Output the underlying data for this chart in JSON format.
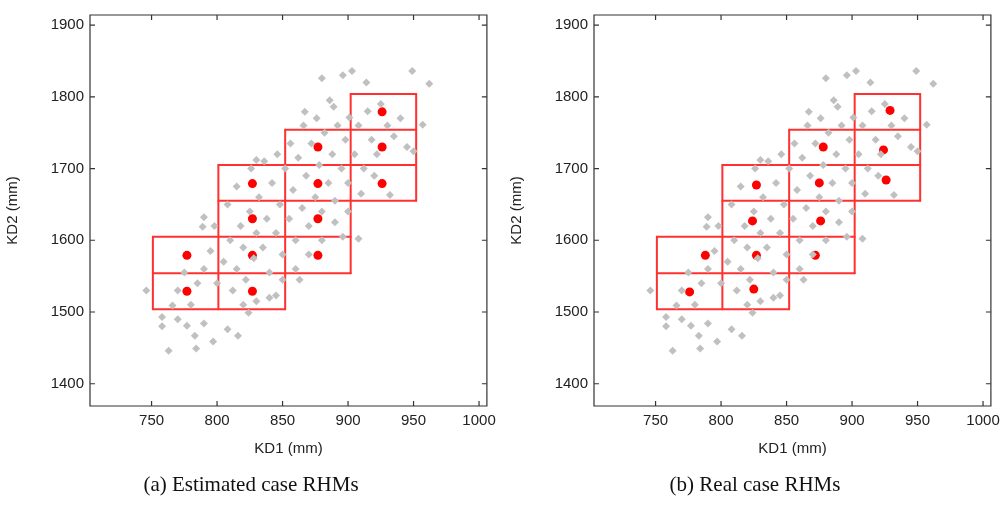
{
  "chart_data": [
    {
      "type": "scatter",
      "title": "(a) Estimated case RHMs",
      "xlabel": "KD1 (mm)",
      "ylabel": "KD2 (mm)",
      "xlim": [
        703,
        1006
      ],
      "ylim": [
        1369,
        1914
      ],
      "xticks": [
        750,
        800,
        850,
        900,
        950,
        1000
      ],
      "yticks": [
        1400,
        1500,
        1600,
        1700,
        1800,
        1900
      ],
      "grid": false,
      "legend": false,
      "series": [
        {
          "color": "#c0c0c0",
          "marker": "diamond",
          "x": [
            746,
            758,
            758,
            763,
            766,
            770,
            777,
            783,
            784,
            790,
            797,
            808,
            816,
            824,
            845,
            863,
            880,
            896,
            903,
            914,
            949,
            962,
            957,
            950,
            932,
            908,
            896,
            867,
            889,
            901,
            830,
            789,
            790,
            800,
            805,
            810,
            812,
            815,
            818,
            820,
            822,
            825,
            828,
            830,
            832,
            835,
            838,
            840,
            842,
            845,
            848,
            850,
            852,
            855,
            858,
            860,
            862,
            865,
            868,
            870,
            872,
            875,
            878,
            880,
            882,
            885,
            888,
            890,
            892,
            895,
            898,
            900,
            905,
            908,
            912,
            915,
            918,
            922,
            925,
            930,
            935,
            940,
            945,
            795,
            790,
            785,
            780,
            775,
            770,
            798,
            808,
            815,
            826,
            836,
            846,
            856,
            866,
            876,
            886,
            860,
            870,
            880,
            890,
            900,
            910,
            920,
            850,
            840,
            830,
            820
          ],
          "values": [
            1530,
            1493,
            1480,
            1446,
            1509,
            1490,
            1481,
            1467,
            1449,
            1484,
            1459,
            1476,
            1467,
            1499,
            1523,
            1545,
            1826,
            1830,
            1836,
            1820,
            1836,
            1818,
            1761,
            1724,
            1663,
            1602,
            1605,
            1779,
            1786,
            1771,
            1712,
            1619,
            1632,
            1540,
            1570,
            1600,
            1530,
            1560,
            1620,
            1590,
            1545,
            1640,
            1575,
            1610,
            1660,
            1590,
            1630,
            1555,
            1680,
            1610,
            1650,
            1580,
            1700,
            1630,
            1670,
            1600,
            1715,
            1645,
            1690,
            1620,
            1735,
            1660,
            1705,
            1640,
            1750,
            1680,
            1720,
            1655,
            1760,
            1700,
            1740,
            1680,
            1720,
            1760,
            1700,
            1780,
            1740,
            1720,
            1790,
            1760,
            1745,
            1770,
            1730,
            1585,
            1560,
            1540,
            1510,
            1555,
            1530,
            1620,
            1650,
            1675,
            1700,
            1710,
            1720,
            1735,
            1760,
            1770,
            1795,
            1560,
            1580,
            1600,
            1625,
            1640,
            1665,
            1690,
            1545,
            1520,
            1515,
            1510
          ]
        },
        {
          "color": "#ff0000",
          "marker": "circle",
          "x": [
            777,
            777,
            827,
            827,
            827,
            827,
            877,
            877,
            877,
            877,
            926,
            926,
            926
          ],
          "values": [
            1529,
            1579,
            1529,
            1579,
            1630,
            1679,
            1579,
            1630,
            1679,
            1730,
            1679,
            1730,
            1779
          ]
        },
        {
          "type": "line",
          "color": "#ff3030",
          "marker": "none",
          "x": [
            751,
            852
          ],
          "values": [
            1504,
            1504
          ]
        },
        {
          "type": "line",
          "color": "#ff3030",
          "marker": "none",
          "x": [
            751,
            902
          ],
          "values": [
            1554,
            1554
          ]
        },
        {
          "type": "line",
          "color": "#ff3030",
          "marker": "none",
          "x": [
            751,
            902
          ],
          "values": [
            1605,
            1605
          ]
        },
        {
          "type": "line",
          "color": "#ff3030",
          "marker": "none",
          "x": [
            801,
            952
          ],
          "values": [
            1655,
            1655
          ]
        },
        {
          "type": "line",
          "color": "#ff3030",
          "marker": "none",
          "x": [
            801,
            952
          ],
          "values": [
            1705,
            1705
          ]
        },
        {
          "type": "line",
          "color": "#ff3030",
          "marker": "none",
          "x": [
            852,
            952
          ],
          "values": [
            1754,
            1754
          ]
        },
        {
          "type": "line",
          "color": "#ff3030",
          "marker": "none",
          "x": [
            902,
            952
          ],
          "values": [
            1804,
            1804
          ]
        },
        {
          "type": "line",
          "color": "#ff3030",
          "marker": "none",
          "x": [
            751,
            751
          ],
          "values": [
            1504,
            1605
          ]
        },
        {
          "type": "line",
          "color": "#ff3030",
          "marker": "none",
          "x": [
            801,
            801
          ],
          "values": [
            1504,
            1705
          ]
        },
        {
          "type": "line",
          "color": "#ff3030",
          "marker": "none",
          "x": [
            852,
            852
          ],
          "values": [
            1504,
            1754
          ]
        },
        {
          "type": "line",
          "color": "#ff3030",
          "marker": "none",
          "x": [
            902,
            902
          ],
          "values": [
            1554,
            1804
          ]
        },
        {
          "type": "line",
          "color": "#ff3030",
          "marker": "none",
          "x": [
            952,
            952
          ],
          "values": [
            1655,
            1804
          ]
        }
      ]
    },
    {
      "type": "scatter",
      "title": "(b) Real case RHMs",
      "xlabel": "KD1 (mm)",
      "ylabel": "KD2 (mm)",
      "xlim": [
        703,
        1006
      ],
      "ylim": [
        1369,
        1914
      ],
      "xticks": [
        750,
        800,
        850,
        900,
        950,
        1000
      ],
      "yticks": [
        1400,
        1500,
        1600,
        1700,
        1800,
        1900
      ],
      "grid": false,
      "legend": false,
      "series": [
        {
          "color": "#c0c0c0",
          "marker": "diamond",
          "x": [
            746,
            758,
            758,
            763,
            766,
            770,
            777,
            783,
            784,
            790,
            797,
            808,
            816,
            824,
            845,
            863,
            880,
            896,
            903,
            914,
            949,
            962,
            957,
            950,
            932,
            908,
            896,
            867,
            889,
            901,
            830,
            789,
            790,
            800,
            805,
            810,
            812,
            815,
            818,
            820,
            822,
            825,
            828,
            830,
            832,
            835,
            838,
            840,
            842,
            845,
            848,
            850,
            852,
            855,
            858,
            860,
            862,
            865,
            868,
            870,
            872,
            875,
            878,
            880,
            882,
            885,
            888,
            890,
            892,
            895,
            898,
            900,
            905,
            908,
            912,
            915,
            918,
            922,
            925,
            930,
            935,
            940,
            945,
            795,
            790,
            785,
            780,
            775,
            770,
            798,
            808,
            815,
            826,
            836,
            846,
            856,
            866,
            876,
            886,
            860,
            870,
            880,
            890,
            900,
            910,
            920,
            850,
            840,
            830,
            820
          ],
          "values": [
            1530,
            1493,
            1480,
            1446,
            1509,
            1490,
            1481,
            1467,
            1449,
            1484,
            1459,
            1476,
            1467,
            1499,
            1523,
            1545,
            1826,
            1830,
            1836,
            1820,
            1836,
            1818,
            1761,
            1724,
            1663,
            1602,
            1605,
            1779,
            1786,
            1771,
            1712,
            1619,
            1632,
            1540,
            1570,
            1600,
            1530,
            1560,
            1620,
            1590,
            1545,
            1640,
            1575,
            1610,
            1660,
            1590,
            1630,
            1555,
            1680,
            1610,
            1650,
            1580,
            1700,
            1630,
            1670,
            1600,
            1715,
            1645,
            1690,
            1620,
            1735,
            1660,
            1705,
            1640,
            1750,
            1680,
            1720,
            1655,
            1760,
            1700,
            1740,
            1680,
            1720,
            1760,
            1700,
            1780,
            1740,
            1720,
            1790,
            1760,
            1745,
            1770,
            1730,
            1585,
            1560,
            1540,
            1510,
            1555,
            1530,
            1620,
            1650,
            1675,
            1700,
            1710,
            1720,
            1735,
            1760,
            1770,
            1795,
            1560,
            1580,
            1600,
            1625,
            1640,
            1665,
            1690,
            1545,
            1520,
            1515,
            1510
          ]
        },
        {
          "color": "#ff0000",
          "marker": "circle",
          "x": [
            776,
            788,
            825,
            827,
            824,
            827,
            872,
            876,
            875,
            878,
            926,
            924,
            929
          ],
          "values": [
            1528,
            1579,
            1532,
            1579,
            1627,
            1677,
            1579,
            1627,
            1680,
            1730,
            1684,
            1726,
            1781
          ]
        },
        {
          "type": "line",
          "color": "#ff3030",
          "marker": "none",
          "x": [
            751,
            852
          ],
          "values": [
            1504,
            1504
          ]
        },
        {
          "type": "line",
          "color": "#ff3030",
          "marker": "none",
          "x": [
            751,
            902
          ],
          "values": [
            1554,
            1554
          ]
        },
        {
          "type": "line",
          "color": "#ff3030",
          "marker": "none",
          "x": [
            751,
            902
          ],
          "values": [
            1605,
            1605
          ]
        },
        {
          "type": "line",
          "color": "#ff3030",
          "marker": "none",
          "x": [
            801,
            952
          ],
          "values": [
            1655,
            1655
          ]
        },
        {
          "type": "line",
          "color": "#ff3030",
          "marker": "none",
          "x": [
            801,
            952
          ],
          "values": [
            1705,
            1705
          ]
        },
        {
          "type": "line",
          "color": "#ff3030",
          "marker": "none",
          "x": [
            852,
            952
          ],
          "values": [
            1754,
            1754
          ]
        },
        {
          "type": "line",
          "color": "#ff3030",
          "marker": "none",
          "x": [
            902,
            952
          ],
          "values": [
            1804,
            1804
          ]
        },
        {
          "type": "line",
          "color": "#ff3030",
          "marker": "none",
          "x": [
            751,
            751
          ],
          "values": [
            1504,
            1605
          ]
        },
        {
          "type": "line",
          "color": "#ff3030",
          "marker": "none",
          "x": [
            801,
            801
          ],
          "values": [
            1504,
            1705
          ]
        },
        {
          "type": "line",
          "color": "#ff3030",
          "marker": "none",
          "x": [
            852,
            852
          ],
          "values": [
            1504,
            1754
          ]
        },
        {
          "type": "line",
          "color": "#ff3030",
          "marker": "none",
          "x": [
            902,
            902
          ],
          "values": [
            1554,
            1804
          ]
        },
        {
          "type": "line",
          "color": "#ff3030",
          "marker": "none",
          "x": [
            952,
            952
          ],
          "values": [
            1655,
            1804
          ]
        }
      ]
    }
  ]
}
